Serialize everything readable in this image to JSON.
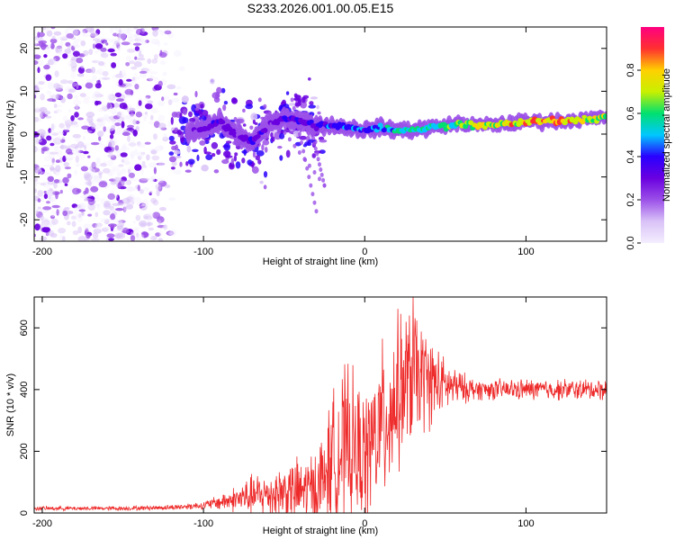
{
  "title": "S233.2026.001.00.05.E15",
  "chart_data": [
    {
      "type": "heatmap",
      "xlabel": "Height of straight line (km)",
      "ylabel": "Frequency (Hz)",
      "xlim": [
        -205,
        150
      ],
      "ylim": [
        -25,
        25
      ],
      "xticks": [
        -200,
        -100,
        0,
        100
      ],
      "yticks": [
        -20,
        -10,
        0,
        10,
        20
      ],
      "colorbar": {
        "label": "Normalized spectral amplitude",
        "range": [
          0,
          1
        ],
        "ticks": [
          0.0,
          0.2,
          0.4,
          0.6,
          0.8
        ],
        "tick_labels": [
          "0.0",
          "0.2",
          "0.4",
          "0.6",
          "0.8"
        ],
        "colormap": [
          "#f4eefe",
          "#d9c2f7",
          "#9b50e8",
          "#6a00e0",
          "#2a00ff",
          "#00c8ff",
          "#00e070",
          "#c8f000",
          "#ffd000",
          "#ff3030",
          "#ff0080"
        ]
      },
      "ridge": {
        "x": [
          -110,
          -100,
          -90,
          -80,
          -70,
          -60,
          -50,
          -40,
          -30,
          -20,
          -10,
          0,
          10,
          20,
          30,
          40,
          50,
          60,
          70,
          80,
          90,
          100,
          110,
          120,
          130,
          140,
          150
        ],
        "frequency": [
          0,
          1,
          3,
          0,
          -2,
          2,
          4,
          3,
          2,
          2,
          1.5,
          1,
          1.5,
          1,
          1,
          1.5,
          2,
          2.5,
          2,
          2.2,
          2.5,
          3,
          3,
          3,
          3.3,
          3.5,
          4
        ],
        "amplitude": [
          0.25,
          0.3,
          0.35,
          0.3,
          0.35,
          0.3,
          0.35,
          0.35,
          0.4,
          0.45,
          0.5,
          0.45,
          0.5,
          0.55,
          0.6,
          0.6,
          0.65,
          0.7,
          0.75,
          0.75,
          0.8,
          0.82,
          0.85,
          0.85,
          0.85,
          0.8,
          0.75
        ]
      },
      "noise_region": {
        "x_range": [
          -205,
          -120
        ],
        "frequency_range": [
          -25,
          25
        ],
        "amplitude_range": [
          0.02,
          0.3
        ]
      }
    },
    {
      "type": "line",
      "xlabel": "Height of straight line (km)",
      "ylabel": "SNR (10 * v/v)",
      "xlim": [
        -205,
        150
      ],
      "ylim": [
        0,
        700
      ],
      "xticks": [
        -200,
        -100,
        0,
        100
      ],
      "yticks": [
        0,
        200,
        400,
        600
      ],
      "color": "#ee2a2a",
      "envelope": {
        "x": [
          -205,
          -150,
          -120,
          -100,
          -90,
          -80,
          -70,
          -60,
          -50,
          -40,
          -30,
          -25,
          -20,
          -15,
          -10,
          -5,
          0,
          5,
          10,
          15,
          20,
          25,
          30,
          35,
          40,
          45,
          50,
          55,
          60,
          70,
          80,
          90,
          100,
          110,
          120,
          130,
          140,
          150
        ],
        "base": [
          15,
          15,
          18,
          25,
          35,
          45,
          55,
          60,
          70,
          70,
          80,
          120,
          180,
          200,
          220,
          200,
          180,
          230,
          280,
          330,
          380,
          420,
          450,
          440,
          430,
          420,
          410,
          410,
          405,
          400,
          400,
          400,
          400,
          400,
          400,
          400,
          400,
          400
        ],
        "spread": [
          8,
          8,
          10,
          15,
          30,
          50,
          80,
          90,
          110,
          130,
          160,
          180,
          250,
          300,
          300,
          260,
          250,
          280,
          300,
          320,
          300,
          280,
          260,
          220,
          180,
          140,
          100,
          80,
          60,
          40,
          40,
          40,
          40,
          40,
          40,
          40,
          40,
          40
        ]
      },
      "samples": 1400,
      "peak": {
        "x": 30,
        "y": 700
      }
    }
  ]
}
